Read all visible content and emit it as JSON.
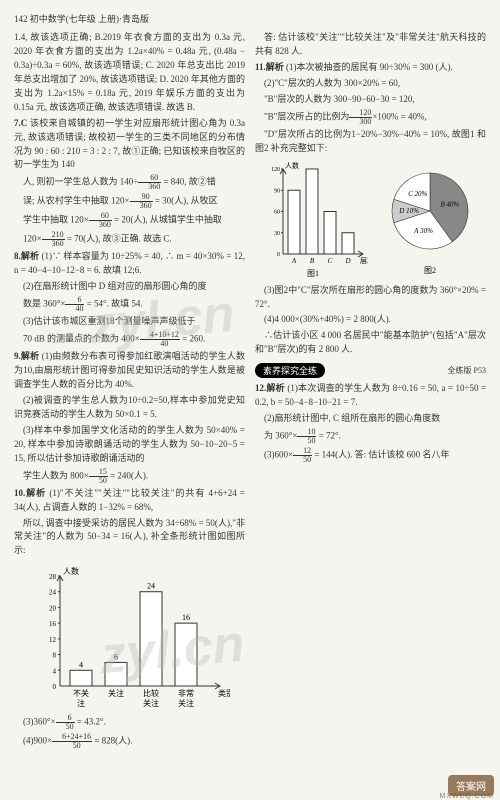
{
  "header": "142 初中数学(七年级 上册)·青岛版",
  "col1": {
    "p1": "1.4, 故该选项正确; B.2019 年衣食方面的支出为 0.3a 元, 2020 年衣食方面的支出为 1.2a×40% = 0.48a 元, (0.48a − 0.3a)÷0.3a = 60%, 故该选项错误; C. 2020 年总支出比 2019 年总支出增加了 20%, 故该选项错误; D. 2020 年其他方面的支出为 1.2a×15% = 0.18a 元, 2019 年娱乐方面的支出为 0.15a 元, 故该选项正确, 故该选项错误. 故选 B.",
    "q7_label": "7.C",
    "q7_body": " 该校来自城镇的初一学生对应扇形统计图心角为 0.3a 元, 故该选项错误; 故校初一学生的三类不同地区的分布情况为 90 : 60 : 210 = 3 : 2 : 7, 故①正确; 已知该校来自牧区的初一学生为 140",
    "q7_line2a": "人, 则初一学生总人数为 140÷",
    "q7_line2b": " = 840, 故②错",
    "q7_line3a": "误; 从农村学生中抽取 120×",
    "q7_line3b": " = 30(人), 从牧区",
    "q7_line4a": "学生中抽取 120×",
    "q7_line4b": " = 20(人), 从城镇学生中抽取",
    "q7_line5a": "120×",
    "q7_line5b": " = 70(人), 故③正确. 故选 C.",
    "q8_label": "8.解析",
    "q8_1": " (1)∵ 样本容量为 10÷25% = 40, ∴ m = 40×30% = 12, n = 40−4−10−12−8 = 6. 故填 12;6.",
    "q8_2a": "(2)在扇形统计图中 D 组对应的扇形圆心角的度",
    "q8_2b": "数是 360°×",
    "q8_2c": " = 54°. 故填 54.",
    "q8_3a": "(3)估计该市城区重测18个测量噪声声级低于",
    "q8_3b": "70 dB 的测量点的个数为 400×",
    "q8_3c": " = 260.",
    "q9_label": "9.解析",
    "q9_1": " (1)由频数分布表可得参加红歌演唱活动的学生人数为10,由扇形统计图可得参加民史知识活动的学生人数是被调查学生人数的百分比为 40%.",
    "q9_2": "(2)被调查的学生总人数为10÷0.2=50,样本中参加党史知识竞赛活动的学生人数为 50×0.1 = 5.",
    "q9_3": "(3)样本中参加国学文化活动的的学生人数为 50×40% = 20, 样本中参加诗歌朗诵活动的学生人数为 50−10−20−5 = 15, 所以估计参加诗歌朗诵活动的",
    "q9_3b": "学生人数为 800×",
    "q9_3c": " = 240(人).",
    "q10_label": "10.解析",
    "q10_1a": " (1)\"不关注\"\"关注\"\"比较关注\"的共有 4+6+24 = 34(人), 占调查人数的 1−32% = 68%,",
    "q10_1b": "所以, 调查中接受采访的居民人数为 34÷68% = 50(人),\"非常关注\"的人数为 50−34 = 16(人), 补全条形统计图如图所示:"
  },
  "col2": {
    "chart1": {
      "ylabel": "人数",
      "ymax": 28,
      "ytick": 4,
      "bars": [
        {
          "label": "不关注",
          "value": 4
        },
        {
          "label": "关注",
          "value": 6
        },
        {
          "label": "比较关注",
          "value": 24
        },
        {
          "label": "非常关注",
          "value": 16
        }
      ],
      "xlabel_suffix": "类别",
      "bar_color": "#ffffff",
      "bar_stroke": "#333",
      "axis_color": "#333",
      "label_fontsize": 8
    },
    "p_eq1a": "(3)360°×",
    "p_eq1b": " = 43.2°.",
    "p_eq2a": "(4)900×",
    "p_eq2b": " = 828(人).",
    "p_ans1": "答: 估计该校\"关注\"\"比较关注\"及\"非常关注\"航天科技的共有 828 人.",
    "q11_label": "11.解析",
    "q11_1": " (1)本次被抽查的居民有 90÷30% = 300 (人).",
    "q11_2a": "(2)\"C\"层次的人数为 300×20% = 60,",
    "q11_2b": "\"B\"层次的人数为 300−90−60−30 = 120,",
    "q11_2c1": "\"B\"层次所占的比例为",
    "q11_2c2": "×100% = 40%,",
    "q11_2d": "\"D\"层次所占的比例为1−20%−30%−40% = 10%, 故图1 和图2 补充完整如下:",
    "chart2": {
      "ylabel": "人数",
      "ymax": 120,
      "ytick": 30,
      "bars": [
        {
          "label": "A",
          "value": 90
        },
        {
          "label": "B",
          "value": 120
        },
        {
          "label": "C",
          "value": 60
        },
        {
          "label": "D",
          "value": 30
        }
      ],
      "xlabel": "层次",
      "caption": "图1",
      "bar_stroke": "#333"
    },
    "pie": {
      "caption": "图2",
      "slices": [
        {
          "label": "B 40%",
          "value": 40,
          "fill": "#888"
        },
        {
          "label": "A 30%",
          "value": 30,
          "fill": "#fff"
        },
        {
          "label": "D 10%",
          "value": 10,
          "fill": "#ccc"
        },
        {
          "label": "C 20%",
          "value": 20,
          "fill": "#fff"
        }
      ]
    },
    "q11_3a": "(3)图2中\"C\"层次所在扇形的圆心角的度数为 360°×20% = 72°.",
    "q11_3b": "(4)4 000×(30%+40%) = 2 800(人).",
    "q11_3c": "∴估计该小区 4 000 名居民中\"能基本防护\"(包括\"A\"层次和\"B\"层次)的有 2 800 人.",
    "pill": "素养探究全练",
    "side_note": "全练版 P53",
    "q12_label": "12.解析",
    "q12_1": " (1)本次调查的学生人数为 8÷0.16 = 50, a = 10÷50 = 0.2, b = 50−4−8−10−21 = 7.",
    "q12_2a": "(2)扇形统计图中, C 组所在扇形的圆心角度数",
    "q12_2b1": "为 360°×",
    "q12_2b2": " = 72°.",
    "q12_3a": "(3)600×",
    "q12_3b": " = 144(人). 答: 估计该校 600 名八年"
  },
  "fracs": {
    "f60_360": {
      "num": "60",
      "den": "360"
    },
    "f90_360": {
      "num": "90",
      "den": "360"
    },
    "f210_360": {
      "num": "210",
      "den": "360"
    },
    "f6_40": {
      "num": "6",
      "den": "40"
    },
    "f4_10_12_40": {
      "num": "4+10+12",
      "den": "40"
    },
    "f15_50": {
      "num": "15",
      "den": "50"
    },
    "f6_50": {
      "num": "6",
      "den": "50"
    },
    "f6_24_16_50": {
      "num": "6+24+16",
      "den": "50"
    },
    "f120_300": {
      "num": "120",
      "den": "300"
    },
    "f10_50": {
      "num": "10",
      "den": "50"
    },
    "f12_50": {
      "num": "12",
      "den": "50"
    }
  },
  "watermark": "zyl.cn",
  "footer": {
    "badge": "答案网",
    "sub": "MXWEQ.COM"
  }
}
